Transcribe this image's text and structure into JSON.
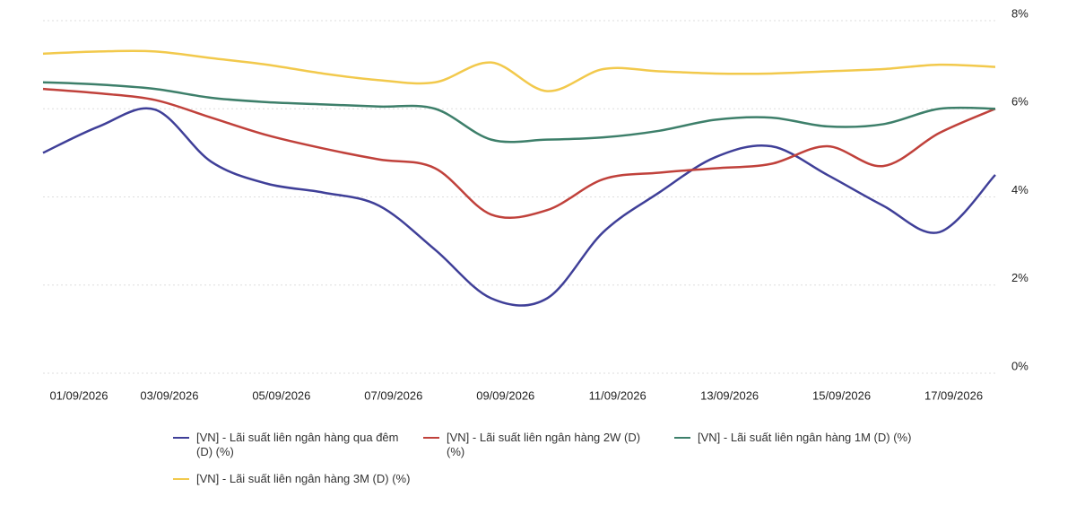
{
  "chart_data": {
    "type": "line",
    "categories": [
      "01/09/2026",
      null,
      "03/09/2026",
      null,
      "05/09/2026",
      null,
      "07/09/2026",
      null,
      "09/09/2026",
      null,
      "11/09/2026",
      null,
      "13/09/2026",
      null,
      "15/09/2026",
      null,
      "17/09/2026",
      null
    ],
    "series": [
      {
        "name": "[VN] - Lãi suất liên ngân hàng qua đêm (D) (%)",
        "color": "#3f3f98",
        "values": [
          5.0,
          5.6,
          5.98,
          4.8,
          4.3,
          4.1,
          3.8,
          2.8,
          1.7,
          1.7,
          3.2,
          4.1,
          4.9,
          5.15,
          4.5,
          3.8,
          3.2,
          4.5
        ]
      },
      {
        "name": "[VN] - Lãi suất liên ngân hàng 2W (D) (%)",
        "color": "#c0413b",
        "values": [
          6.45,
          6.35,
          6.2,
          5.8,
          5.4,
          5.1,
          4.85,
          4.65,
          3.6,
          3.7,
          4.4,
          4.55,
          4.65,
          4.75,
          5.15,
          4.7,
          5.45,
          6.0
        ]
      },
      {
        "name": "[VN] - Lãi suất liên ngân hàng 1M (D) (%)",
        "color": "#3d7f6a",
        "values": [
          6.6,
          6.55,
          6.45,
          6.25,
          6.15,
          6.1,
          6.05,
          6.0,
          5.3,
          5.3,
          5.35,
          5.5,
          5.75,
          5.8,
          5.6,
          5.65,
          6.0,
          6.0
        ]
      },
      {
        "name": "[VN] - Lãi suất liên ngân hàng 3M (D) (%)",
        "color": "#f2c94c",
        "values": [
          7.25,
          7.3,
          7.3,
          7.15,
          7.0,
          6.8,
          6.65,
          6.6,
          7.05,
          6.4,
          6.9,
          6.85,
          6.8,
          6.8,
          6.85,
          6.9,
          7.0,
          6.95
        ]
      }
    ],
    "ylim": [
      0,
      8
    ],
    "yticks": [
      {
        "value": 0,
        "label": "0%"
      },
      {
        "value": 2,
        "label": "2%"
      },
      {
        "value": 4,
        "label": "4%"
      },
      {
        "value": 6,
        "label": "6%"
      },
      {
        "value": 8,
        "label": "8%"
      }
    ],
    "grid": true,
    "legend": "bottom"
  }
}
